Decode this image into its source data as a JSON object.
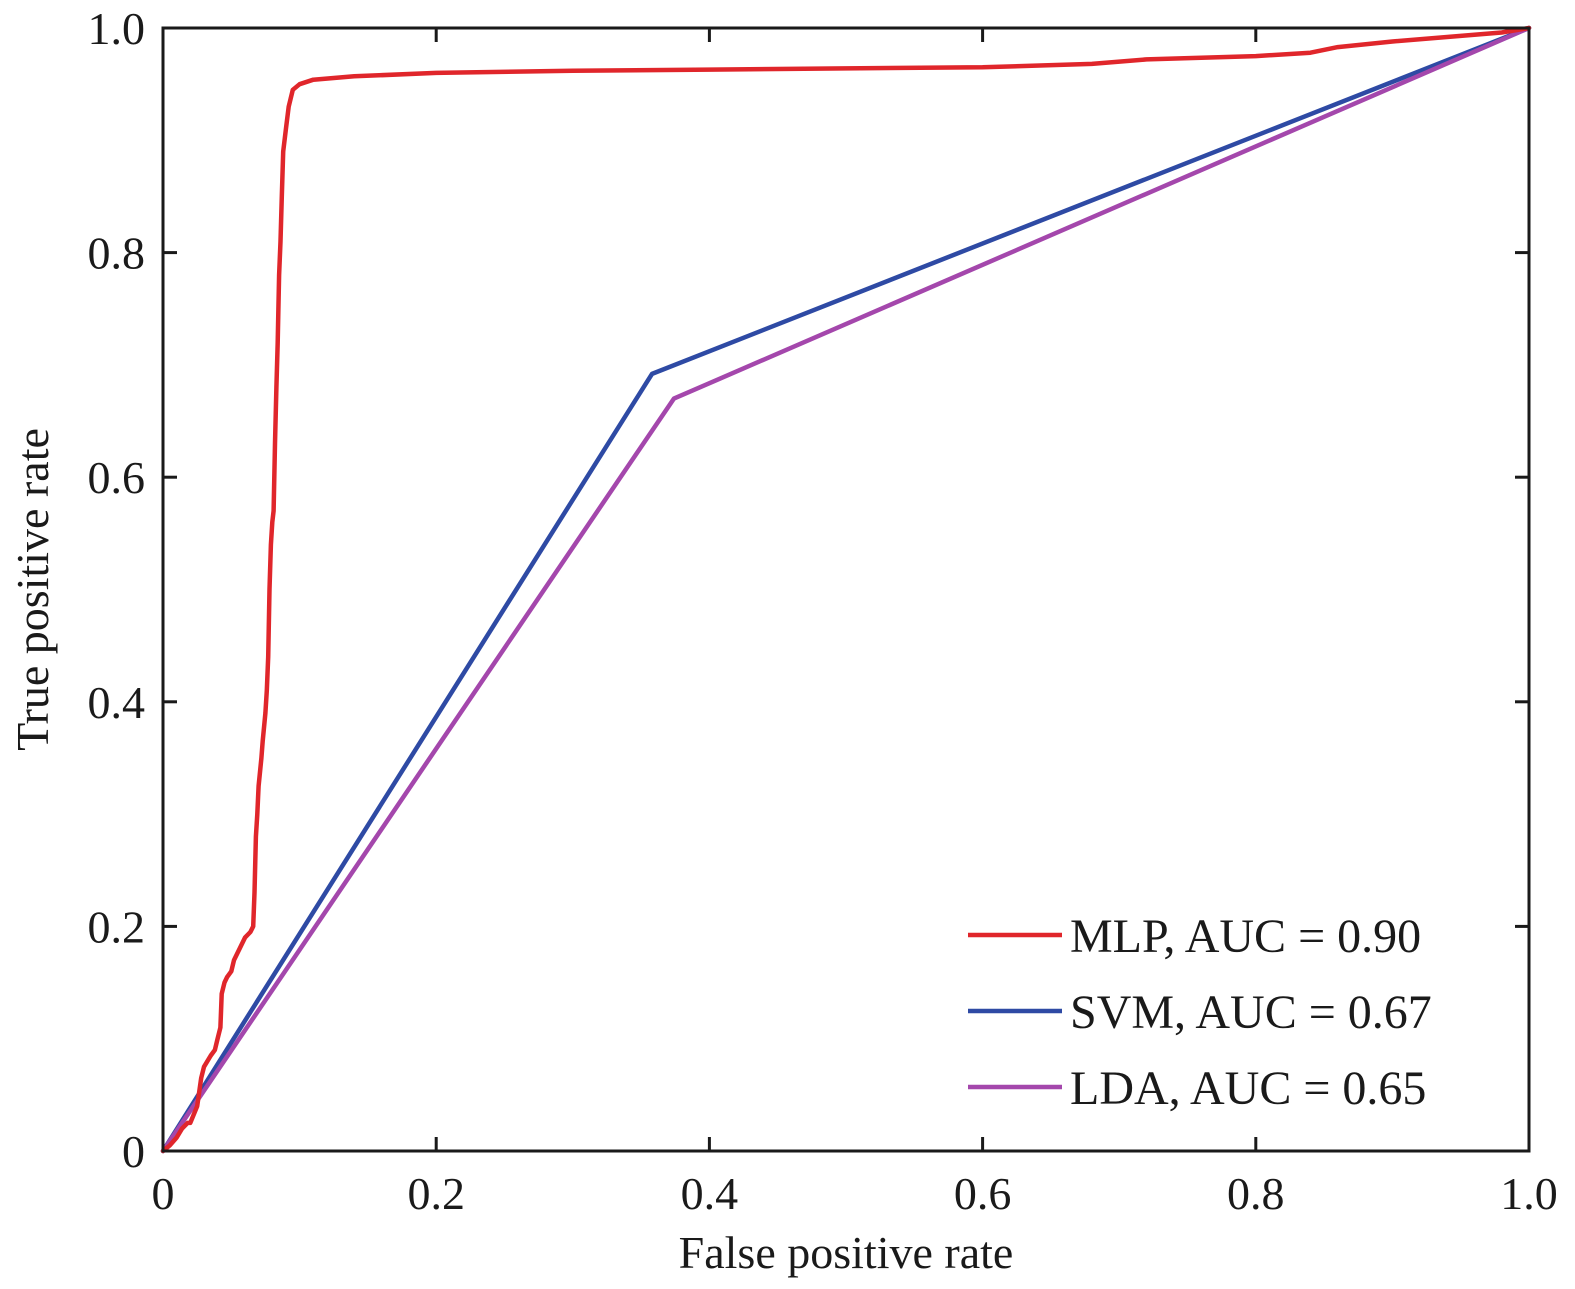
{
  "chart_data": {
    "type": "line",
    "xlabel": "False positive rate",
    "ylabel": "True positive rate",
    "xlim": [
      0,
      1
    ],
    "ylim": [
      0,
      1
    ],
    "xticks": [
      {
        "value": 0,
        "label": "0"
      },
      {
        "value": 0.2,
        "label": "0.2"
      },
      {
        "value": 0.4,
        "label": "0.4"
      },
      {
        "value": 0.6,
        "label": "0.6"
      },
      {
        "value": 0.8,
        "label": "0.8"
      },
      {
        "value": 1.0,
        "label": "1.0"
      }
    ],
    "yticks": [
      {
        "value": 0,
        "label": "0"
      },
      {
        "value": 0.2,
        "label": "0.2"
      },
      {
        "value": 0.4,
        "label": "0.4"
      },
      {
        "value": 0.6,
        "label": "0.6"
      },
      {
        "value": 0.8,
        "label": "0.8"
      },
      {
        "value": 1.0,
        "label": "1.0"
      }
    ],
    "grid": false,
    "legend_position": "bottom-right",
    "series": [
      {
        "name": "MLP, AUC = 0.90",
        "color": "#e0262b",
        "points": [
          [
            0,
            0
          ],
          [
            0.005,
            0.005
          ],
          [
            0.01,
            0.012
          ],
          [
            0.014,
            0.02
          ],
          [
            0.018,
            0.025
          ],
          [
            0.02,
            0.025
          ],
          [
            0.025,
            0.04
          ],
          [
            0.028,
            0.065
          ],
          [
            0.03,
            0.075
          ],
          [
            0.035,
            0.085
          ],
          [
            0.038,
            0.09
          ],
          [
            0.04,
            0.1
          ],
          [
            0.042,
            0.11
          ],
          [
            0.043,
            0.14
          ],
          [
            0.045,
            0.15
          ],
          [
            0.047,
            0.155
          ],
          [
            0.05,
            0.16
          ],
          [
            0.052,
            0.17
          ],
          [
            0.056,
            0.18
          ],
          [
            0.06,
            0.19
          ],
          [
            0.064,
            0.195
          ],
          [
            0.066,
            0.2
          ],
          [
            0.067,
            0.23
          ],
          [
            0.068,
            0.28
          ],
          [
            0.069,
            0.3
          ],
          [
            0.07,
            0.325
          ],
          [
            0.072,
            0.35
          ],
          [
            0.073,
            0.365
          ],
          [
            0.075,
            0.39
          ],
          [
            0.076,
            0.41
          ],
          [
            0.077,
            0.44
          ],
          [
            0.078,
            0.5
          ],
          [
            0.079,
            0.54
          ],
          [
            0.08,
            0.56
          ],
          [
            0.081,
            0.57
          ],
          [
            0.082,
            0.63
          ],
          [
            0.083,
            0.68
          ],
          [
            0.084,
            0.72
          ],
          [
            0.085,
            0.78
          ],
          [
            0.086,
            0.81
          ],
          [
            0.087,
            0.85
          ],
          [
            0.088,
            0.89
          ],
          [
            0.09,
            0.91
          ],
          [
            0.092,
            0.93
          ],
          [
            0.095,
            0.945
          ],
          [
            0.1,
            0.95
          ],
          [
            0.11,
            0.954
          ],
          [
            0.14,
            0.957
          ],
          [
            0.2,
            0.96
          ],
          [
            0.3,
            0.962
          ],
          [
            0.4,
            0.963
          ],
          [
            0.5,
            0.964
          ],
          [
            0.6,
            0.965
          ],
          [
            0.68,
            0.968
          ],
          [
            0.72,
            0.972
          ],
          [
            0.8,
            0.975
          ],
          [
            0.84,
            0.978
          ],
          [
            0.86,
            0.983
          ],
          [
            0.9,
            0.988
          ],
          [
            0.95,
            0.993
          ],
          [
            0.98,
            0.996
          ],
          [
            1.0,
            1.0
          ]
        ]
      },
      {
        "name": "SVM, AUC = 0.67",
        "color": "#2e4aa4",
        "points": [
          [
            0,
            0
          ],
          [
            0.358,
            0.692
          ],
          [
            1.0,
            1.0
          ]
        ]
      },
      {
        "name": "LDA, AUC = 0.65",
        "color": "#a447ac",
        "points": [
          [
            0,
            0
          ],
          [
            0.374,
            0.67
          ],
          [
            1.0,
            1.0
          ]
        ]
      }
    ]
  }
}
